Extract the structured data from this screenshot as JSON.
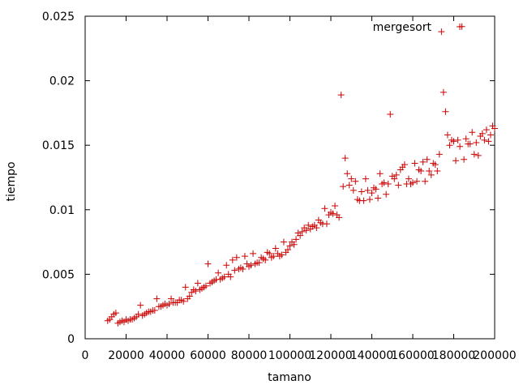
{
  "chart_data": {
    "type": "scatter",
    "xlabel": "tamano",
    "ylabel": "tiempo",
    "xlim": [
      0,
      200000
    ],
    "ylim": [
      0,
      0.025
    ],
    "x_ticks": [
      0,
      20000,
      40000,
      60000,
      80000,
      100000,
      120000,
      140000,
      160000,
      180000,
      200000
    ],
    "x_tick_labels": [
      "0",
      "20000",
      "40000",
      "60000",
      "80000",
      "100000",
      "120000",
      "140000",
      "160000",
      "180000",
      "200000"
    ],
    "y_ticks": [
      0,
      0.005,
      0.01,
      0.015,
      0.02,
      0.025
    ],
    "y_tick_labels": [
      "0",
      "0.005",
      "0.01",
      "0.015",
      "0.02",
      "0.025"
    ],
    "grid": false,
    "legend_position": "top-right",
    "series": [
      {
        "name": "mergesort",
        "color": "#cc0000",
        "marker": "plus",
        "points": [
          [
            11000,
            0.0014
          ],
          [
            12000,
            0.0015
          ],
          [
            13000,
            0.0017
          ],
          [
            14000,
            0.0019
          ],
          [
            15000,
            0.002
          ],
          [
            16000,
            0.0012
          ],
          [
            17000,
            0.0013
          ],
          [
            18000,
            0.0014
          ],
          [
            19000,
            0.0013
          ],
          [
            20000,
            0.0015
          ],
          [
            21000,
            0.0014
          ],
          [
            22000,
            0.0015
          ],
          [
            23000,
            0.0015
          ],
          [
            24000,
            0.0016
          ],
          [
            25000,
            0.0017
          ],
          [
            26000,
            0.0019
          ],
          [
            27000,
            0.0026
          ],
          [
            28000,
            0.0018
          ],
          [
            29000,
            0.0019
          ],
          [
            30000,
            0.002
          ],
          [
            31000,
            0.0021
          ],
          [
            32000,
            0.0021
          ],
          [
            33000,
            0.0022
          ],
          [
            34000,
            0.0022
          ],
          [
            35000,
            0.0031
          ],
          [
            36000,
            0.0025
          ],
          [
            37000,
            0.0025
          ],
          [
            38000,
            0.0026
          ],
          [
            39000,
            0.0027
          ],
          [
            40000,
            0.0026
          ],
          [
            41000,
            0.0027
          ],
          [
            42000,
            0.0031
          ],
          [
            43000,
            0.0028
          ],
          [
            44000,
            0.0028
          ],
          [
            45000,
            0.0028
          ],
          [
            46000,
            0.003
          ],
          [
            47000,
            0.003
          ],
          [
            48000,
            0.0029
          ],
          [
            49000,
            0.004
          ],
          [
            50000,
            0.0031
          ],
          [
            51000,
            0.0033
          ],
          [
            52000,
            0.0036
          ],
          [
            53000,
            0.0038
          ],
          [
            54000,
            0.0037
          ],
          [
            55000,
            0.0043
          ],
          [
            56000,
            0.0038
          ],
          [
            57000,
            0.0039
          ],
          [
            58000,
            0.004
          ],
          [
            59000,
            0.0041
          ],
          [
            60000,
            0.0058
          ],
          [
            61000,
            0.0043
          ],
          [
            62000,
            0.0044
          ],
          [
            63000,
            0.0045
          ],
          [
            64000,
            0.0046
          ],
          [
            65000,
            0.0051
          ],
          [
            66000,
            0.0046
          ],
          [
            67000,
            0.0047
          ],
          [
            68000,
            0.0048
          ],
          [
            69000,
            0.0057
          ],
          [
            70000,
            0.005
          ],
          [
            71000,
            0.0048
          ],
          [
            72000,
            0.0061
          ],
          [
            73000,
            0.0053
          ],
          [
            74000,
            0.0063
          ],
          [
            75000,
            0.0054
          ],
          [
            76000,
            0.0055
          ],
          [
            77000,
            0.0054
          ],
          [
            78000,
            0.0064
          ],
          [
            79000,
            0.0058
          ],
          [
            80000,
            0.0056
          ],
          [
            81000,
            0.0057
          ],
          [
            82000,
            0.0066
          ],
          [
            83000,
            0.0058
          ],
          [
            84000,
            0.0059
          ],
          [
            85000,
            0.0059
          ],
          [
            86000,
            0.0063
          ],
          [
            87000,
            0.0062
          ],
          [
            88000,
            0.0061
          ],
          [
            89000,
            0.0067
          ],
          [
            90000,
            0.0066
          ],
          [
            91000,
            0.0063
          ],
          [
            92000,
            0.0064
          ],
          [
            93000,
            0.007
          ],
          [
            94000,
            0.0066
          ],
          [
            95000,
            0.0064
          ],
          [
            96000,
            0.0065
          ],
          [
            97000,
            0.0075
          ],
          [
            98000,
            0.0067
          ],
          [
            99000,
            0.0069
          ],
          [
            100000,
            0.0072
          ],
          [
            101000,
            0.0075
          ],
          [
            102000,
            0.0073
          ],
          [
            103000,
            0.0077
          ],
          [
            104000,
            0.0082
          ],
          [
            105000,
            0.008
          ],
          [
            106000,
            0.0083
          ],
          [
            107000,
            0.0086
          ],
          [
            108000,
            0.0084
          ],
          [
            109000,
            0.0088
          ],
          [
            110000,
            0.0085
          ],
          [
            111000,
            0.0087
          ],
          [
            112000,
            0.0088
          ],
          [
            113000,
            0.0086
          ],
          [
            114000,
            0.0092
          ],
          [
            115000,
            0.009
          ],
          [
            116000,
            0.0089
          ],
          [
            117000,
            0.0101
          ],
          [
            118000,
            0.0089
          ],
          [
            119000,
            0.0096
          ],
          [
            120000,
            0.0098
          ],
          [
            121000,
            0.0097
          ],
          [
            122000,
            0.0103
          ],
          [
            123000,
            0.0096
          ],
          [
            124000,
            0.0094
          ],
          [
            125000,
            0.0189
          ],
          [
            126000,
            0.0118
          ],
          [
            127000,
            0.014
          ],
          [
            128000,
            0.0128
          ],
          [
            129000,
            0.0119
          ],
          [
            130000,
            0.0124
          ],
          [
            131000,
            0.0115
          ],
          [
            132000,
            0.0122
          ],
          [
            133000,
            0.0108
          ],
          [
            134000,
            0.0107
          ],
          [
            135000,
            0.0114
          ],
          [
            136000,
            0.0107
          ],
          [
            137000,
            0.0124
          ],
          [
            138000,
            0.0115
          ],
          [
            139000,
            0.0108
          ],
          [
            140000,
            0.0113
          ],
          [
            141000,
            0.0117
          ],
          [
            142000,
            0.0116
          ],
          [
            143000,
            0.0109
          ],
          [
            144000,
            0.0128
          ],
          [
            145000,
            0.012
          ],
          [
            146000,
            0.0121
          ],
          [
            147000,
            0.0112
          ],
          [
            148000,
            0.012
          ],
          [
            149000,
            0.0174
          ],
          [
            150000,
            0.0126
          ],
          [
            151000,
            0.0124
          ],
          [
            152000,
            0.0127
          ],
          [
            153000,
            0.0119
          ],
          [
            154000,
            0.0131
          ],
          [
            155000,
            0.0133
          ],
          [
            156000,
            0.0135
          ],
          [
            157000,
            0.012
          ],
          [
            158000,
            0.0124
          ],
          [
            159000,
            0.012
          ],
          [
            160000,
            0.0121
          ],
          [
            161000,
            0.0136
          ],
          [
            162000,
            0.0122
          ],
          [
            163000,
            0.0131
          ],
          [
            164000,
            0.013
          ],
          [
            165000,
            0.0137
          ],
          [
            166000,
            0.0122
          ],
          [
            167000,
            0.0139
          ],
          [
            168000,
            0.013
          ],
          [
            169000,
            0.0127
          ],
          [
            170000,
            0.0136
          ],
          [
            171000,
            0.0135
          ],
          [
            172000,
            0.013
          ],
          [
            173000,
            0.0143
          ],
          [
            174000,
            0.0238
          ],
          [
            175000,
            0.0191
          ],
          [
            176000,
            0.0176
          ],
          [
            177000,
            0.0158
          ],
          [
            178000,
            0.015
          ],
          [
            179000,
            0.0154
          ],
          [
            180000,
            0.0153
          ],
          [
            181000,
            0.0138
          ],
          [
            182000,
            0.0154
          ],
          [
            183000,
            0.0149
          ],
          [
            184000,
            0.0242
          ],
          [
            185000,
            0.0139
          ],
          [
            186000,
            0.0155
          ],
          [
            187000,
            0.0151
          ],
          [
            188000,
            0.0151
          ],
          [
            189000,
            0.016
          ],
          [
            190000,
            0.0143
          ],
          [
            191000,
            0.0152
          ],
          [
            192000,
            0.0142
          ],
          [
            193000,
            0.0157
          ],
          [
            194000,
            0.0159
          ],
          [
            195000,
            0.0154
          ],
          [
            196000,
            0.0162
          ],
          [
            197000,
            0.0153
          ],
          [
            198000,
            0.0158
          ],
          [
            199000,
            0.0165
          ],
          [
            200000,
            0.0163
          ]
        ]
      }
    ]
  }
}
